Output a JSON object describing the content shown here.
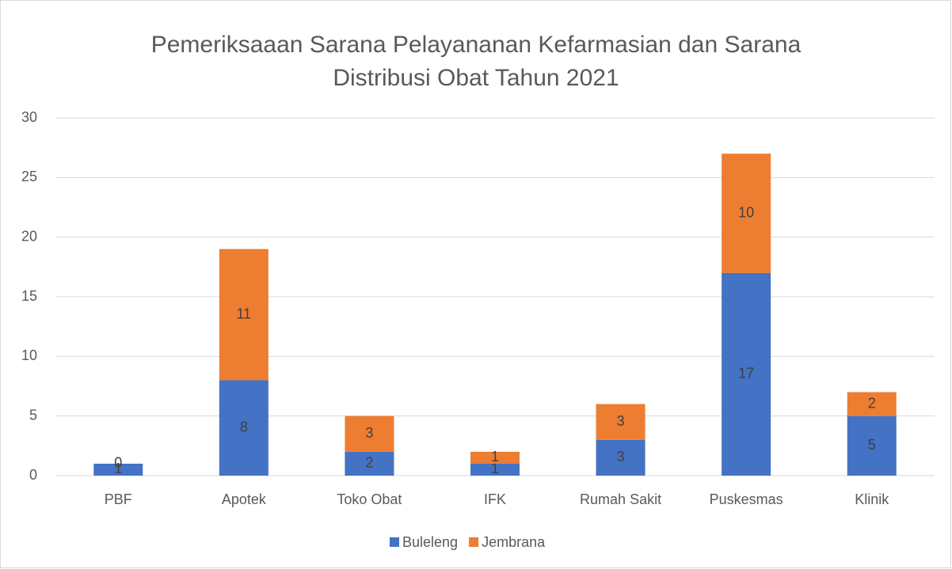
{
  "chart_data": {
    "type": "bar",
    "stacked": true,
    "title": [
      "Pemeriksaaan Sarana Pelayananan Kefarmasian dan Sarana",
      "Distribusi Obat Tahun 2021"
    ],
    "categories": [
      "PBF",
      "Apotek",
      "Toko Obat",
      "IFK",
      "Rumah Sakit",
      "Puskesmas",
      "Klinik"
    ],
    "series": [
      {
        "name": "Buleleng",
        "color": "#4472c4",
        "values": [
          1,
          8,
          2,
          1,
          3,
          17,
          5
        ]
      },
      {
        "name": "Jembrana",
        "color": "#ed7d31",
        "values": [
          0,
          11,
          3,
          1,
          3,
          10,
          2
        ]
      }
    ],
    "ylim": [
      0,
      30
    ],
    "yticks": [
      0,
      5,
      10,
      15,
      20,
      25,
      30
    ],
    "grid": true,
    "legend": "bottom"
  }
}
